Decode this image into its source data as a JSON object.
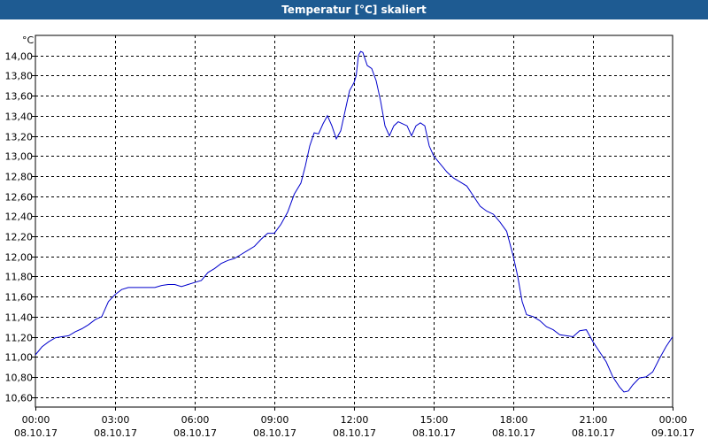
{
  "window": {
    "title": "Temperatur [°C] skaliert"
  },
  "chart_data": {
    "type": "line",
    "unit_label": "°C",
    "ylim": [
      10.5,
      14.2
    ],
    "y_ticks": [
      "14,00",
      "13,80",
      "13,60",
      "13,40",
      "13,20",
      "13,00",
      "12,80",
      "12,60",
      "12,40",
      "12,20",
      "12,00",
      "11,80",
      "11,60",
      "11,40",
      "11,20",
      "11,00",
      "10,80",
      "10,60"
    ],
    "x_ticks": [
      {
        "time": "00:00",
        "date": "08.10.17"
      },
      {
        "time": "03:00",
        "date": "08.10.17"
      },
      {
        "time": "06:00",
        "date": "08.10.17"
      },
      {
        "time": "09:00",
        "date": "08.10.17"
      },
      {
        "time": "12:00",
        "date": "08.10.17"
      },
      {
        "time": "15:00",
        "date": "08.10.17"
      },
      {
        "time": "18:00",
        "date": "08.10.17"
      },
      {
        "time": "21:00",
        "date": "08.10.17"
      },
      {
        "time": "00:00",
        "date": "09.10.17"
      }
    ],
    "grid": true,
    "series": [
      {
        "color": "#0000cc",
        "points": [
          [
            "08.10.17 00:00",
            11.02
          ],
          [
            "08.10.17 00:15",
            11.1
          ],
          [
            "08.10.17 00:30",
            11.15
          ],
          [
            "08.10.17 00:45",
            11.19
          ],
          [
            "08.10.17 01:00",
            11.2
          ],
          [
            "08.10.17 01:15",
            11.21
          ],
          [
            "08.10.17 01:30",
            11.25
          ],
          [
            "08.10.17 01:45",
            11.28
          ],
          [
            "08.10.17 02:00",
            11.32
          ],
          [
            "08.10.17 02:15",
            11.37
          ],
          [
            "08.10.17 02:30",
            11.4
          ],
          [
            "08.10.17 02:45",
            11.55
          ],
          [
            "08.10.17 03:00",
            11.62
          ],
          [
            "08.10.17 03:15",
            11.67
          ],
          [
            "08.10.17 03:30",
            11.69
          ],
          [
            "08.10.17 04:00",
            11.69
          ],
          [
            "08.10.17 04:30",
            11.69
          ],
          [
            "08.10.17 04:45",
            11.71
          ],
          [
            "08.10.17 05:00",
            11.72
          ],
          [
            "08.10.17 05:15",
            11.72
          ],
          [
            "08.10.17 05:30",
            11.7
          ],
          [
            "08.10.17 05:45",
            11.72
          ],
          [
            "08.10.17 06:00",
            11.74
          ],
          [
            "08.10.17 06:15",
            11.76
          ],
          [
            "08.10.17 06:30",
            11.84
          ],
          [
            "08.10.17 06:45",
            11.88
          ],
          [
            "08.10.17 07:00",
            11.93
          ],
          [
            "08.10.17 07:15",
            11.96
          ],
          [
            "08.10.17 07:30",
            11.98
          ],
          [
            "08.10.17 07:45",
            12.02
          ],
          [
            "08.10.17 08:00",
            12.06
          ],
          [
            "08.10.17 08:15",
            12.1
          ],
          [
            "08.10.17 08:30",
            12.17
          ],
          [
            "08.10.17 08:45",
            12.23
          ],
          [
            "08.10.17 09:00",
            12.23
          ],
          [
            "08.10.17 09:15",
            12.32
          ],
          [
            "08.10.17 09:30",
            12.44
          ],
          [
            "08.10.17 09:45",
            12.62
          ],
          [
            "08.10.17 10:00",
            12.73
          ],
          [
            "08.10.17 10:10",
            12.9
          ],
          [
            "08.10.17 10:20",
            13.1
          ],
          [
            "08.10.17 10:30",
            13.23
          ],
          [
            "08.10.17 10:40",
            13.22
          ],
          [
            "08.10.17 10:50",
            13.32
          ],
          [
            "08.10.17 11:00",
            13.4
          ],
          [
            "08.10.17 11:10",
            13.3
          ],
          [
            "08.10.17 11:20",
            13.17
          ],
          [
            "08.10.17 11:30",
            13.25
          ],
          [
            "08.10.17 11:40",
            13.45
          ],
          [
            "08.10.17 11:50",
            13.65
          ],
          [
            "08.10.17 12:00",
            13.73
          ],
          [
            "08.10.17 12:05",
            13.8
          ],
          [
            "08.10.17 12:10",
            14.0
          ],
          [
            "08.10.17 12:15",
            14.04
          ],
          [
            "08.10.17 12:20",
            14.03
          ],
          [
            "08.10.17 12:30",
            13.9
          ],
          [
            "08.10.17 12:40",
            13.87
          ],
          [
            "08.10.17 12:50",
            13.75
          ],
          [
            "08.10.17 13:00",
            13.55
          ],
          [
            "08.10.17 13:10",
            13.3
          ],
          [
            "08.10.17 13:20",
            13.2
          ],
          [
            "08.10.17 13:30",
            13.3
          ],
          [
            "08.10.17 13:40",
            13.34
          ],
          [
            "08.10.17 13:50",
            13.32
          ],
          [
            "08.10.17 14:00",
            13.3
          ],
          [
            "08.10.17 14:10",
            13.2
          ],
          [
            "08.10.17 14:20",
            13.3
          ],
          [
            "08.10.17 14:30",
            13.33
          ],
          [
            "08.10.17 14:40",
            13.3
          ],
          [
            "08.10.17 14:50",
            13.1
          ],
          [
            "08.10.17 15:00",
            13.0
          ],
          [
            "08.10.17 15:15",
            12.92
          ],
          [
            "08.10.17 15:30",
            12.84
          ],
          [
            "08.10.17 15:45",
            12.78
          ],
          [
            "08.10.17 16:00",
            12.74
          ],
          [
            "08.10.17 16:15",
            12.7
          ],
          [
            "08.10.17 16:30",
            12.6
          ],
          [
            "08.10.17 16:45",
            12.5
          ],
          [
            "08.10.17 17:00",
            12.45
          ],
          [
            "08.10.17 17:15",
            12.42
          ],
          [
            "08.10.17 17:30",
            12.34
          ],
          [
            "08.10.17 17:45",
            12.25
          ],
          [
            "08.10.17 18:00",
            12.0
          ],
          [
            "08.10.17 18:10",
            11.8
          ],
          [
            "08.10.17 18:20",
            11.55
          ],
          [
            "08.10.17 18:30",
            11.42
          ],
          [
            "08.10.17 18:45",
            11.4
          ],
          [
            "08.10.17 19:00",
            11.36
          ],
          [
            "08.10.17 19:15",
            11.3
          ],
          [
            "08.10.17 19:30",
            11.27
          ],
          [
            "08.10.17 19:45",
            11.22
          ],
          [
            "08.10.17 20:00",
            11.21
          ],
          [
            "08.10.17 20:15",
            11.2
          ],
          [
            "08.10.17 20:30",
            11.26
          ],
          [
            "08.10.17 20:45",
            11.27
          ],
          [
            "08.10.17 21:00",
            11.15
          ],
          [
            "08.10.17 21:15",
            11.05
          ],
          [
            "08.10.17 21:30",
            10.95
          ],
          [
            "08.10.17 21:45",
            10.8
          ],
          [
            "08.10.17 22:00",
            10.7
          ],
          [
            "08.10.17 22:10",
            10.65
          ],
          [
            "08.10.17 22:20",
            10.66
          ],
          [
            "08.10.17 22:30",
            10.72
          ],
          [
            "08.10.17 22:45",
            10.79
          ],
          [
            "08.10.17 23:00",
            10.8
          ],
          [
            "08.10.17 23:15",
            10.85
          ],
          [
            "08.10.17 23:30",
            10.98
          ],
          [
            "08.10.17 23:45",
            11.1
          ],
          [
            "09.10.17 00:00",
            11.2
          ]
        ]
      }
    ]
  }
}
